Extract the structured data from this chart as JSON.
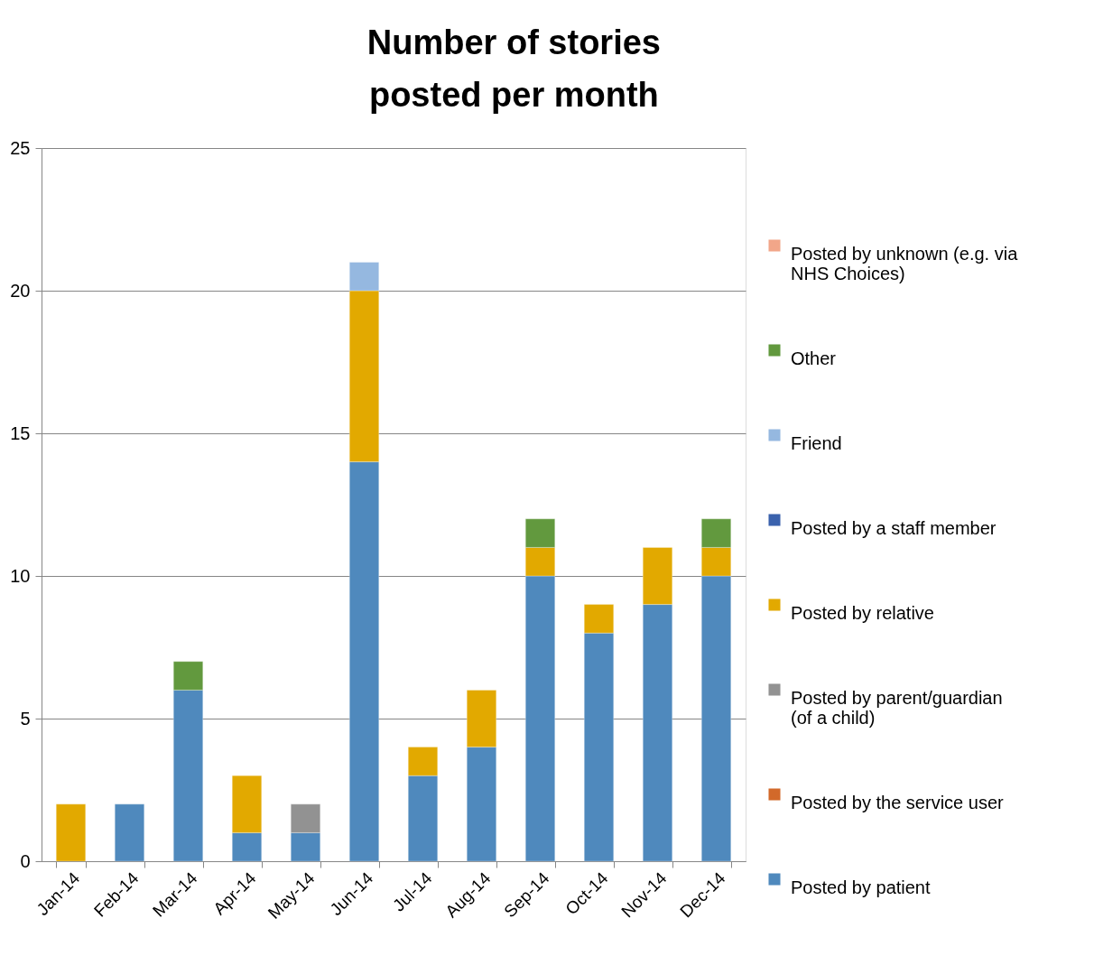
{
  "chart_data": {
    "type": "bar",
    "stacked": true,
    "title": "Number of stories posted per month",
    "categories": [
      "Jan-14",
      "Feb-14",
      "Mar-14",
      "Apr-14",
      "May-14",
      "Jun-14",
      "Jul-14",
      "Aug-14",
      "Sep-14",
      "Oct-14",
      "Nov-14",
      "Dec-14"
    ],
    "series": [
      {
        "name": "Posted by patient",
        "color": "#4f89bd",
        "values": [
          0,
          2,
          6,
          1,
          1,
          14,
          3,
          4,
          10,
          8,
          9,
          10
        ]
      },
      {
        "name": "Posted by the service user",
        "color": "#d2692a",
        "values": [
          0,
          0,
          0,
          0,
          0,
          0,
          0,
          0,
          0,
          0,
          0,
          0
        ]
      },
      {
        "name": "Posted by parent/guardian (of a child)",
        "color": "#929292",
        "values": [
          0,
          0,
          0,
          0,
          1,
          0,
          0,
          0,
          0,
          0,
          0,
          0
        ]
      },
      {
        "name": "Posted by relative",
        "color": "#e2a900",
        "values": [
          2,
          0,
          0,
          2,
          0,
          6,
          1,
          2,
          1,
          1,
          2,
          1
        ]
      },
      {
        "name": "Posted by a staff member",
        "color": "#3a62ad",
        "values": [
          0,
          0,
          0,
          0,
          0,
          0,
          0,
          0,
          0,
          0,
          0,
          0
        ]
      },
      {
        "name": "Friend",
        "color": "#95b8e0",
        "values": [
          0,
          0,
          0,
          0,
          0,
          1,
          0,
          0,
          0,
          0,
          0,
          0
        ]
      },
      {
        "name": "Other",
        "color": "#62993e",
        "values": [
          0,
          0,
          1,
          0,
          0,
          0,
          0,
          0,
          1,
          0,
          0,
          1
        ]
      },
      {
        "name": "Posted by unknown (e.g. via NHS Choices)",
        "color": "#f2a689",
        "values": [
          0,
          0,
          0,
          0,
          0,
          0,
          0,
          0,
          0,
          0,
          0,
          0
        ]
      }
    ],
    "ylim": [
      0,
      25
    ],
    "yticks": [
      0,
      5,
      10,
      15,
      20,
      25
    ],
    "grid": "y",
    "legend": "right"
  }
}
